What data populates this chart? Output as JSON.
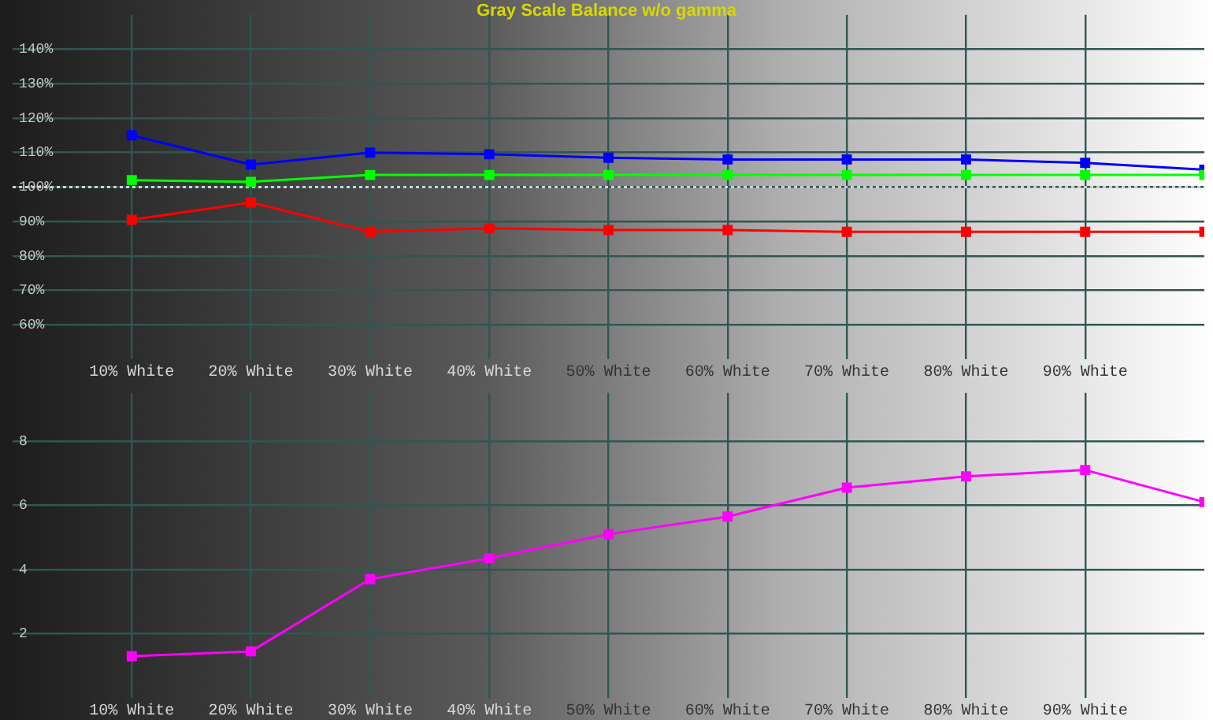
{
  "chart_data": [
    {
      "type": "line",
      "title": "Gray Scale Balance w/o gamma",
      "x": [
        10,
        20,
        30,
        40,
        50,
        60,
        70,
        80,
        90,
        100
      ],
      "xlim": [
        0,
        100
      ],
      "xticks": [
        {
          "value": 10,
          "label": "10% White"
        },
        {
          "value": 20,
          "label": "20% White"
        },
        {
          "value": 30,
          "label": "30% White"
        },
        {
          "value": 40,
          "label": "40% White"
        },
        {
          "value": 50,
          "label": "50% White"
        },
        {
          "value": 60,
          "label": "60% White"
        },
        {
          "value": 70,
          "label": "70% White"
        },
        {
          "value": 80,
          "label": "80% White"
        },
        {
          "value": 90,
          "label": "90% White"
        }
      ],
      "ylim": [
        50,
        150
      ],
      "yticks": [
        {
          "value": 60,
          "label": "60%"
        },
        {
          "value": 70,
          "label": "70%"
        },
        {
          "value": 80,
          "label": "80%"
        },
        {
          "value": 90,
          "label": "90%"
        },
        {
          "value": 100,
          "label": "100%"
        },
        {
          "value": 110,
          "label": "110%"
        },
        {
          "value": 120,
          "label": "120%"
        },
        {
          "value": 130,
          "label": "130%"
        },
        {
          "value": 140,
          "label": "140%"
        }
      ],
      "grid": true,
      "marker": "square",
      "line_style": "solid",
      "ref_lines": [
        {
          "axis": "y",
          "value": 100,
          "color": "#d0d0d0",
          "line_style": "dotted"
        }
      ],
      "series": [
        {
          "color": "#ff0000",
          "values": [
            90.5,
            95.5,
            87,
            88,
            87.5,
            87.5,
            87,
            87,
            87,
            87
          ]
        },
        {
          "color": "#00ff00",
          "values": [
            102,
            101.5,
            103.5,
            103.5,
            103.5,
            103.5,
            103.5,
            103.5,
            103.5,
            103.5
          ]
        },
        {
          "color": "#0000ff",
          "values": [
            115,
            106.5,
            110,
            109.5,
            108.5,
            108,
            108,
            108,
            107,
            105
          ]
        }
      ]
    },
    {
      "type": "line",
      "x": [
        10,
        20,
        30,
        40,
        50,
        60,
        70,
        80,
        90,
        100
      ],
      "xlim": [
        0,
        100
      ],
      "xticks": [
        {
          "value": 10,
          "label": "10% White"
        },
        {
          "value": 20,
          "label": "20% White"
        },
        {
          "value": 30,
          "label": "30% White"
        },
        {
          "value": 40,
          "label": "40% White"
        },
        {
          "value": 50,
          "label": "50% White"
        },
        {
          "value": 60,
          "label": "60% White"
        },
        {
          "value": 70,
          "label": "70% White"
        },
        {
          "value": 80,
          "label": "80% White"
        },
        {
          "value": 90,
          "label": "90% White"
        }
      ],
      "ylim": [
        0,
        9.5
      ],
      "yticks": [
        2,
        4,
        6,
        8
      ],
      "grid": true,
      "marker": "square",
      "line_style": "solid",
      "series": [
        {
          "color": "#ff00ff",
          "values": [
            1.3,
            1.45,
            3.7,
            4.35,
            5.1,
            5.65,
            6.55,
            6.9,
            7.1,
            6.1
          ]
        }
      ]
    }
  ]
}
